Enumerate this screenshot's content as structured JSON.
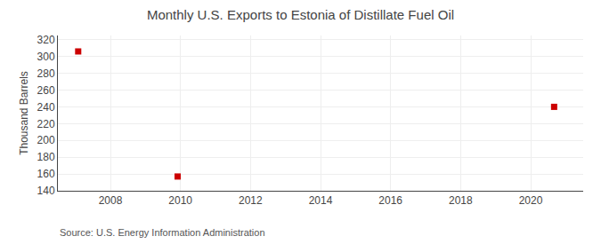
{
  "chart_data": {
    "type": "scatter",
    "title": "Monthly U.S. Exports to Estonia of Distillate Fuel Oil",
    "ylabel": "Thousand Barrels",
    "annotations": [
      "Source: U.S. Energy Information Administration"
    ],
    "x": [
      2007.08,
      2009.92,
      2020.67
    ],
    "values": [
      306,
      157,
      240
    ],
    "color": "#cc0000",
    "marker": "square",
    "xlim": [
      2006.5,
      2021.5
    ],
    "ylim": [
      140,
      325
    ],
    "xticks": [
      2008,
      2010,
      2012,
      2014,
      2016,
      2018,
      2020
    ],
    "yticks": [
      140,
      160,
      180,
      200,
      220,
      240,
      260,
      280,
      300,
      320
    ],
    "grid": true
  }
}
